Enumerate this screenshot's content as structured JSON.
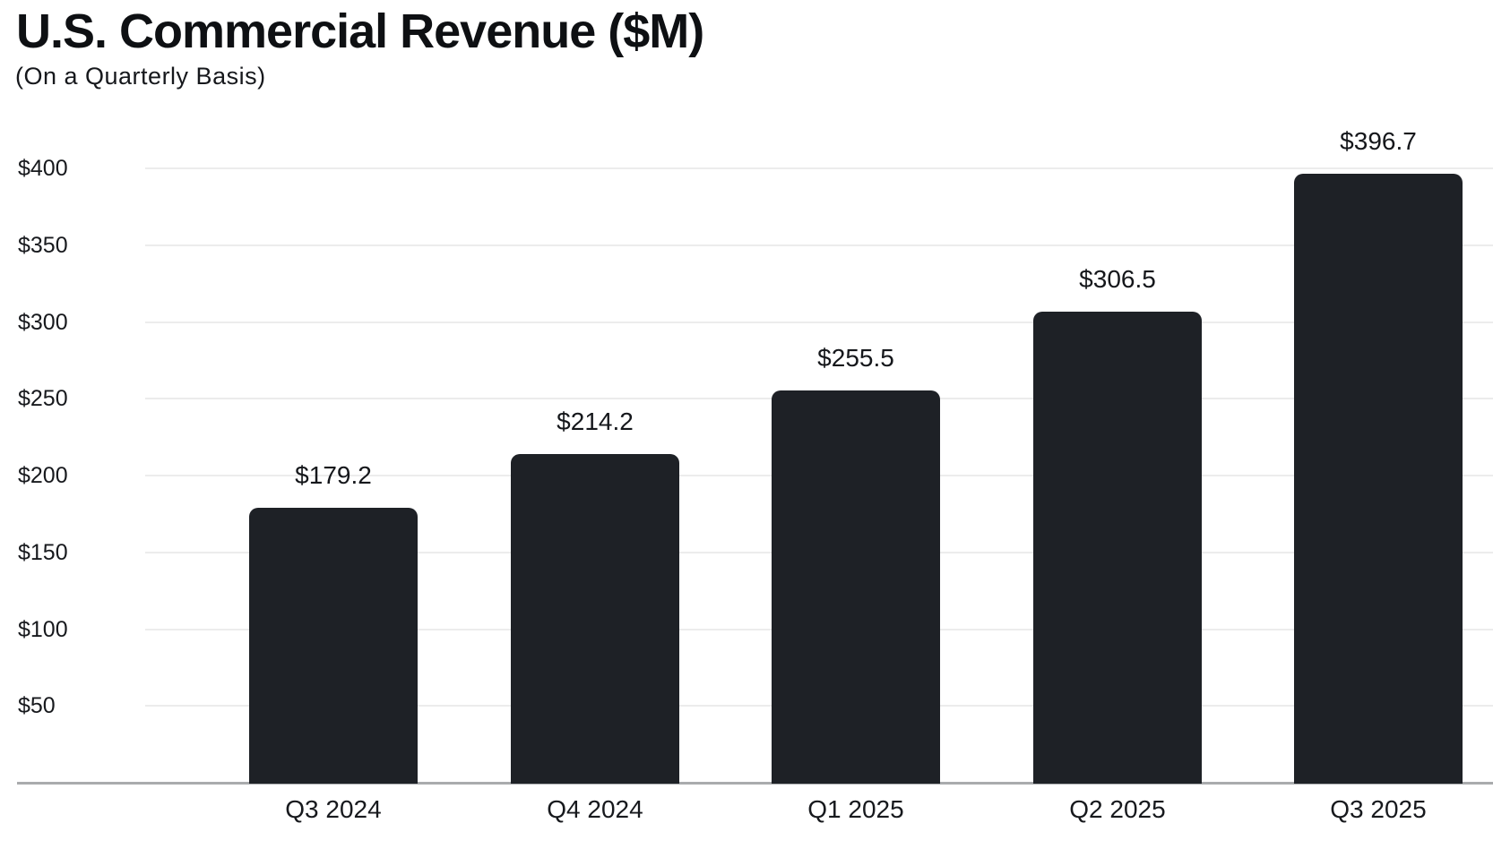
{
  "header": {
    "title": "U.S. Commercial Revenue ($M)",
    "subtitle": "(On a Quarterly Basis)"
  },
  "chart_data": {
    "type": "bar",
    "title": "U.S. Commercial Revenue ($M)",
    "subtitle": "(On a Quarterly Basis)",
    "categories": [
      "Q3 2024",
      "Q4 2024",
      "Q1 2025",
      "Q2 2025",
      "Q3 2025"
    ],
    "values": [
      179.2,
      214.2,
      255.5,
      306.5,
      396.7
    ],
    "value_labels": [
      "$179.2",
      "$214.2",
      "$255.5",
      "$306.5",
      "$396.7"
    ],
    "xlabel": "",
    "ylabel": "",
    "ylim": [
      0,
      400
    ],
    "yticks": [
      50,
      100,
      150,
      200,
      250,
      300,
      350,
      400
    ],
    "ytick_labels": [
      "$50",
      "$100",
      "$150",
      "$200",
      "$250",
      "$300",
      "$350",
      "$400"
    ],
    "grid": "horizontal",
    "legend": "none"
  },
  "colors": {
    "background": "#ffffff",
    "bar": "#1e2126",
    "title": "#0e1013",
    "subtitle": "#16181c",
    "tick_label": "#17191d",
    "value_label": "#15171b",
    "gridline": "#ececec",
    "axis_line": "#a9abad"
  }
}
